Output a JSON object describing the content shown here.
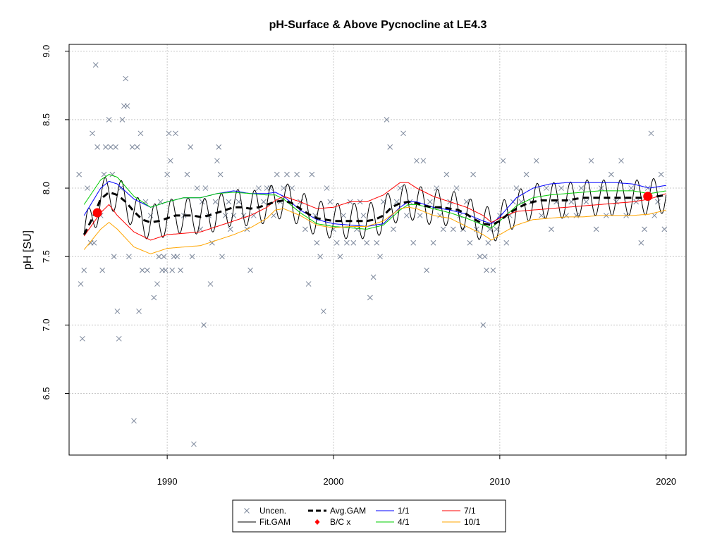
{
  "chart_data": {
    "type": "scatter",
    "title": "pH-Surface & Above Pycnocline at LE4.3",
    "xlabel": "",
    "ylabel": "pH [SU]",
    "xlim": [
      1984.1,
      2021.2
    ],
    "ylim": [
      6.05,
      9.05
    ],
    "x_ticks": [
      1990,
      2000,
      2010,
      2020
    ],
    "x_tick_labels": [
      "1990",
      "2000",
      "2010",
      "2020"
    ],
    "y_ticks": [
      6.5,
      7.0,
      7.5,
      8.0,
      8.5,
      9.0
    ],
    "y_tick_labels": [
      "6.5",
      "7.0",
      "7.5",
      "8.0",
      "8.5",
      "9.0"
    ],
    "grid": true,
    "legend_position": "bottom-center",
    "legend": [
      {
        "label": "Uncen.",
        "symbol": "x-marker",
        "color": "#7a869a"
      },
      {
        "label": "Fit.GAM",
        "symbol": "line",
        "color": "#000000"
      },
      {
        "label": "Avg.GAM",
        "symbol": "dashed-line",
        "color": "#000000"
      },
      {
        "label": "B/C x",
        "symbol": "diamond",
        "color": "#ff0000"
      },
      {
        "label": "1/1",
        "symbol": "line",
        "color": "#0000ff"
      },
      {
        "label": "4/1",
        "symbol": "line",
        "color": "#00cc00"
      },
      {
        "label": "7/1",
        "symbol": "line",
        "color": "#ff0000"
      },
      {
        "label": "10/1",
        "symbol": "line",
        "color": "#ffa500"
      }
    ],
    "colors": {
      "uncensored": "#7a869a",
      "fit": "#000000",
      "avg": "#000000",
      "bc": "#ff0000",
      "jan": "#0000ff",
      "apr": "#00cc00",
      "jul": "#ff0000",
      "oct": "#ffa500"
    },
    "series": [
      {
        "name": "Avg.GAM",
        "x": [
          1985.0,
          1985.5,
          1986.0,
          1986.5,
          1987.0,
          1987.5,
          1988.0,
          1988.5,
          1989.0,
          1989.5,
          1990.0,
          1990.5,
          1991.0,
          1991.5,
          1992.0,
          1992.5,
          1993.0,
          1993.5,
          1994.0,
          1994.5,
          1995.0,
          1995.5,
          1996.0,
          1996.5,
          1997.0,
          1997.5,
          1998.0,
          1998.5,
          1999.0,
          1999.5,
          2000.0,
          2000.5,
          2001.0,
          2001.5,
          2002.0,
          2002.5,
          2003.0,
          2003.5,
          2004.0,
          2004.5,
          2005.0,
          2005.5,
          2006.0,
          2006.5,
          2007.0,
          2007.5,
          2008.0,
          2008.5,
          2009.0,
          2009.5,
          2010.0,
          2010.5,
          2011.0,
          2011.5,
          2012.0,
          2012.5,
          2013.0,
          2013.5,
          2014.0,
          2014.5,
          2015.0,
          2015.5,
          2016.0,
          2016.5,
          2017.0,
          2017.5,
          2018.0,
          2018.5,
          2019.0,
          2019.5,
          2020.0
        ],
        "y": [
          7.66,
          7.78,
          7.92,
          7.97,
          7.95,
          7.9,
          7.83,
          7.77,
          7.75,
          7.76,
          7.78,
          7.8,
          7.8,
          7.8,
          7.79,
          7.8,
          7.82,
          7.84,
          7.86,
          7.86,
          7.85,
          7.86,
          7.88,
          7.9,
          7.91,
          7.89,
          7.85,
          7.81,
          7.78,
          7.77,
          7.76,
          7.76,
          7.76,
          7.76,
          7.76,
          7.77,
          7.8,
          7.86,
          7.89,
          7.9,
          7.89,
          7.87,
          7.86,
          7.86,
          7.85,
          7.84,
          7.81,
          7.77,
          7.74,
          7.73,
          7.76,
          7.81,
          7.85,
          7.88,
          7.9,
          7.91,
          7.91,
          7.91,
          7.91,
          7.92,
          7.93,
          7.93,
          7.93,
          7.93,
          7.93,
          7.93,
          7.93,
          7.93,
          7.94,
          7.94,
          7.95
        ]
      },
      {
        "name": "1/1",
        "x": [
          1985.0,
          1986.0,
          1986.5,
          1987.0,
          1988.0,
          1989.0,
          1990.0,
          1991.0,
          1992.0,
          1993.0,
          1994.0,
          1995.0,
          1996.0,
          1996.5,
          1997.0,
          1998.0,
          1999.0,
          2000.0,
          2001.0,
          2002.0,
          2003.0,
          2004.0,
          2004.5,
          2005.0,
          2006.0,
          2007.0,
          2008.0,
          2009.0,
          2009.5,
          2010.0,
          2011.0,
          2012.0,
          2013.0,
          2014.0,
          2015.0,
          2016.0,
          2017.0,
          2018.0,
          2019.0,
          2020.0
        ],
        "y": [
          7.8,
          8.0,
          8.05,
          8.03,
          7.92,
          7.86,
          7.9,
          7.93,
          7.93,
          7.96,
          7.98,
          7.96,
          7.96,
          7.97,
          7.94,
          7.84,
          7.77,
          7.74,
          7.73,
          7.72,
          7.74,
          7.86,
          7.9,
          7.9,
          7.86,
          7.84,
          7.81,
          7.76,
          7.74,
          7.79,
          7.93,
          8.0,
          8.03,
          8.04,
          8.04,
          8.04,
          8.04,
          8.03,
          8.0,
          8.02
        ]
      },
      {
        "name": "4/1",
        "x": [
          1985.0,
          1986.0,
          1986.5,
          1987.0,
          1988.0,
          1989.0,
          1990.0,
          1991.0,
          1992.0,
          1993.0,
          1994.0,
          1995.0,
          1996.0,
          1996.5,
          1997.0,
          1998.0,
          1999.0,
          2000.0,
          2001.0,
          2002.0,
          2003.0,
          2004.0,
          2004.5,
          2005.0,
          2006.0,
          2007.0,
          2008.0,
          2009.0,
          2009.5,
          2010.0,
          2011.0,
          2012.0,
          2013.0,
          2014.0,
          2015.0,
          2016.0,
          2017.0,
          2018.0,
          2019.0,
          2020.0
        ],
        "y": [
          7.88,
          8.06,
          8.1,
          8.08,
          7.94,
          7.86,
          7.9,
          7.93,
          7.93,
          7.96,
          7.97,
          7.96,
          7.95,
          7.95,
          7.92,
          7.82,
          7.74,
          7.72,
          7.71,
          7.7,
          7.73,
          7.84,
          7.88,
          7.88,
          7.85,
          7.82,
          7.78,
          7.73,
          7.71,
          7.76,
          7.87,
          7.93,
          7.95,
          7.96,
          7.97,
          7.98,
          7.98,
          7.98,
          7.96,
          7.98
        ]
      },
      {
        "name": "7/1",
        "x": [
          1985.0,
          1986.0,
          1986.5,
          1987.0,
          1988.0,
          1989.0,
          1990.0,
          1991.0,
          1992.0,
          1993.0,
          1994.0,
          1995.0,
          1996.0,
          1996.5,
          1997.0,
          1998.0,
          1999.0,
          2000.0,
          2001.0,
          2002.0,
          2003.0,
          2004.0,
          2004.5,
          2005.0,
          2006.0,
          2007.0,
          2008.0,
          2009.0,
          2009.5,
          2010.0,
          2011.0,
          2012.0,
          2013.0,
          2014.0,
          2015.0,
          2016.0,
          2017.0,
          2018.0,
          2019.0,
          2020.0
        ],
        "y": [
          7.65,
          7.82,
          7.88,
          7.8,
          7.68,
          7.62,
          7.66,
          7.67,
          7.68,
          7.72,
          7.76,
          7.8,
          7.86,
          7.91,
          7.94,
          7.9,
          7.85,
          7.86,
          7.9,
          7.9,
          7.95,
          8.04,
          8.04,
          8.0,
          7.94,
          7.9,
          7.86,
          7.8,
          7.75,
          7.78,
          7.83,
          7.84,
          7.85,
          7.86,
          7.87,
          7.88,
          7.89,
          7.9,
          7.92,
          7.96
        ]
      },
      {
        "name": "10/1",
        "x": [
          1985.0,
          1986.0,
          1986.5,
          1987.0,
          1988.0,
          1989.0,
          1990.0,
          1991.0,
          1992.0,
          1993.0,
          1994.0,
          1995.0,
          1996.0,
          1996.5,
          1997.0,
          1998.0,
          1999.0,
          2000.0,
          2001.0,
          2002.0,
          2003.0,
          2004.0,
          2004.5,
          2005.0,
          2006.0,
          2007.0,
          2008.0,
          2009.0,
          2009.5,
          2010.0,
          2011.0,
          2012.0,
          2013.0,
          2014.0,
          2015.0,
          2016.0,
          2017.0,
          2018.0,
          2019.0,
          2020.0
        ],
        "y": [
          7.55,
          7.7,
          7.75,
          7.7,
          7.57,
          7.52,
          7.56,
          7.57,
          7.58,
          7.62,
          7.66,
          7.71,
          7.78,
          7.84,
          7.85,
          7.8,
          7.73,
          7.71,
          7.72,
          7.72,
          7.76,
          7.85,
          7.86,
          7.85,
          7.8,
          7.78,
          7.72,
          7.66,
          7.62,
          7.66,
          7.73,
          7.77,
          7.78,
          7.79,
          7.79,
          7.8,
          7.8,
          7.8,
          7.81,
          7.84
        ]
      }
    ],
    "fit_gam_seasonal_amplitude": 0.13,
    "bc_points": [
      {
        "x": 1985.8,
        "y": 7.82
      },
      {
        "x": 2018.9,
        "y": 7.94
      }
    ],
    "uncensored_points": [
      [
        1984.7,
        8.1
      ],
      [
        1984.8,
        7.3
      ],
      [
        1984.9,
        6.9
      ],
      [
        1985.0,
        7.4
      ],
      [
        1985.2,
        8.0
      ],
      [
        1985.4,
        7.6
      ],
      [
        1985.5,
        8.4
      ],
      [
        1985.6,
        7.6
      ],
      [
        1985.7,
        8.9
      ],
      [
        1985.8,
        8.3
      ],
      [
        1986.0,
        7.8
      ],
      [
        1986.1,
        7.4
      ],
      [
        1986.2,
        8.1
      ],
      [
        1986.3,
        8.3
      ],
      [
        1986.5,
        8.5
      ],
      [
        1986.6,
        8.3
      ],
      [
        1986.7,
        8.1
      ],
      [
        1986.8,
        7.5
      ],
      [
        1986.9,
        8.3
      ],
      [
        1987.0,
        7.1
      ],
      [
        1987.1,
        6.9
      ],
      [
        1987.2,
        8.0
      ],
      [
        1987.3,
        8.5
      ],
      [
        1987.4,
        8.6
      ],
      [
        1987.5,
        8.8
      ],
      [
        1987.6,
        8.6
      ],
      [
        1987.7,
        7.5
      ],
      [
        1987.9,
        8.3
      ],
      [
        1988.0,
        6.3
      ],
      [
        1988.2,
        8.3
      ],
      [
        1988.3,
        7.1
      ],
      [
        1988.4,
        8.4
      ],
      [
        1988.5,
        7.4
      ],
      [
        1988.7,
        7.9
      ],
      [
        1988.8,
        7.4
      ],
      [
        1989.0,
        7.8
      ],
      [
        1989.2,
        7.2
      ],
      [
        1989.4,
        7.3
      ],
      [
        1989.5,
        7.5
      ],
      [
        1989.6,
        7.9
      ],
      [
        1989.7,
        7.4
      ],
      [
        1989.8,
        7.5
      ],
      [
        1989.9,
        7.4
      ],
      [
        1990.0,
        8.1
      ],
      [
        1990.1,
        8.4
      ],
      [
        1990.2,
        8.2
      ],
      [
        1990.3,
        7.4
      ],
      [
        1990.4,
        7.5
      ],
      [
        1990.5,
        8.4
      ],
      [
        1990.6,
        7.5
      ],
      [
        1990.8,
        7.4
      ],
      [
        1991.0,
        7.8
      ],
      [
        1991.2,
        8.1
      ],
      [
        1991.4,
        8.3
      ],
      [
        1991.5,
        7.5
      ],
      [
        1991.6,
        6.13
      ],
      [
        1991.8,
        8.0
      ],
      [
        1992.0,
        7.7
      ],
      [
        1992.1,
        7.9
      ],
      [
        1992.2,
        7.0
      ],
      [
        1992.3,
        8.0
      ],
      [
        1992.5,
        7.8
      ],
      [
        1992.6,
        7.3
      ],
      [
        1992.7,
        7.6
      ],
      [
        1992.9,
        7.9
      ],
      [
        1993.0,
        8.2
      ],
      [
        1993.1,
        8.3
      ],
      [
        1993.2,
        8.1
      ],
      [
        1993.3,
        7.5
      ],
      [
        1993.5,
        7.8
      ],
      [
        1993.7,
        7.9
      ],
      [
        1993.8,
        7.7
      ],
      [
        1994.0,
        7.8
      ],
      [
        1994.3,
        7.9
      ],
      [
        1994.6,
        7.8
      ],
      [
        1994.8,
        7.7
      ],
      [
        1995.0,
        7.4
      ],
      [
        1995.2,
        7.8
      ],
      [
        1995.5,
        8.0
      ],
      [
        1995.8,
        7.9
      ],
      [
        1996.0,
        8.0
      ],
      [
        1996.2,
        8.0
      ],
      [
        1996.4,
        7.8
      ],
      [
        1996.6,
        8.1
      ],
      [
        1996.8,
        7.9
      ],
      [
        1997.0,
        8.0
      ],
      [
        1997.2,
        8.1
      ],
      [
        1997.5,
        8.0
      ],
      [
        1997.8,
        8.1
      ],
      [
        1998.0,
        7.9
      ],
      [
        1998.3,
        7.7
      ],
      [
        1998.5,
        7.3
      ],
      [
        1998.7,
        8.1
      ],
      [
        1998.9,
        7.8
      ],
      [
        1999.0,
        7.6
      ],
      [
        1999.2,
        7.5
      ],
      [
        1999.4,
        7.1
      ],
      [
        1999.6,
        8.0
      ],
      [
        1999.8,
        7.9
      ],
      [
        2000.0,
        7.7
      ],
      [
        2000.2,
        7.6
      ],
      [
        2000.4,
        7.5
      ],
      [
        2000.6,
        7.8
      ],
      [
        2000.8,
        7.6
      ],
      [
        2001.0,
        7.9
      ],
      [
        2001.2,
        7.6
      ],
      [
        2001.4,
        7.7
      ],
      [
        2001.6,
        7.9
      ],
      [
        2001.8,
        7.8
      ],
      [
        2002.0,
        7.6
      ],
      [
        2002.2,
        7.2
      ],
      [
        2002.4,
        7.35
      ],
      [
        2002.6,
        7.6
      ],
      [
        2002.8,
        7.5
      ],
      [
        2003.0,
        7.9
      ],
      [
        2003.2,
        8.5
      ],
      [
        2003.4,
        8.3
      ],
      [
        2003.6,
        7.7
      ],
      [
        2003.8,
        7.9
      ],
      [
        2004.0,
        8.0
      ],
      [
        2004.2,
        8.4
      ],
      [
        2004.4,
        7.8
      ],
      [
        2004.6,
        7.9
      ],
      [
        2004.8,
        7.6
      ],
      [
        2005.0,
        8.2
      ],
      [
        2005.2,
        7.8
      ],
      [
        2005.4,
        8.2
      ],
      [
        2005.6,
        7.4
      ],
      [
        2005.8,
        7.9
      ],
      [
        2006.0,
        7.6
      ],
      [
        2006.2,
        8.0
      ],
      [
        2006.4,
        7.8
      ],
      [
        2006.6,
        7.7
      ],
      [
        2006.8,
        8.1
      ],
      [
        2007.0,
        7.9
      ],
      [
        2007.2,
        7.7
      ],
      [
        2007.4,
        8.0
      ],
      [
        2007.6,
        7.8
      ],
      [
        2007.8,
        7.7
      ],
      [
        2008.0,
        7.9
      ],
      [
        2008.2,
        7.6
      ],
      [
        2008.4,
        8.1
      ],
      [
        2008.6,
        7.7
      ],
      [
        2008.8,
        7.5
      ],
      [
        2009.0,
        7.0
      ],
      [
        2009.1,
        7.5
      ],
      [
        2009.2,
        7.4
      ],
      [
        2009.3,
        7.6
      ],
      [
        2009.4,
        7.7
      ],
      [
        2009.6,
        7.4
      ],
      [
        2009.8,
        7.7
      ],
      [
        2010.0,
        7.8
      ],
      [
        2010.2,
        8.2
      ],
      [
        2010.4,
        7.6
      ],
      [
        2010.6,
        7.8
      ],
      [
        2010.8,
        7.9
      ],
      [
        2011.0,
        8.0
      ],
      [
        2011.3,
        7.9
      ],
      [
        2011.6,
        8.1
      ],
      [
        2011.9,
        7.9
      ],
      [
        2012.2,
        8.2
      ],
      [
        2012.5,
        7.8
      ],
      [
        2012.8,
        8.0
      ],
      [
        2013.1,
        7.7
      ],
      [
        2013.4,
        7.9
      ],
      [
        2013.7,
        8.0
      ],
      [
        2014.0,
        7.8
      ],
      [
        2014.3,
        7.9
      ],
      [
        2014.6,
        7.8
      ],
      [
        2014.9,
        8.0
      ],
      [
        2015.2,
        7.9
      ],
      [
        2015.5,
        8.2
      ],
      [
        2015.8,
        7.7
      ],
      [
        2016.1,
        8.0
      ],
      [
        2016.4,
        7.8
      ],
      [
        2016.7,
        8.1
      ],
      [
        2017.0,
        7.9
      ],
      [
        2017.3,
        8.2
      ],
      [
        2017.6,
        7.8
      ],
      [
        2017.9,
        8.0
      ],
      [
        2018.2,
        7.9
      ],
      [
        2018.5,
        7.6
      ],
      [
        2018.7,
        7.7
      ],
      [
        2018.9,
        8.0
      ],
      [
        2019.1,
        8.4
      ],
      [
        2019.3,
        7.8
      ],
      [
        2019.5,
        7.9
      ],
      [
        2019.7,
        8.1
      ],
      [
        2019.9,
        7.7
      ]
    ]
  }
}
